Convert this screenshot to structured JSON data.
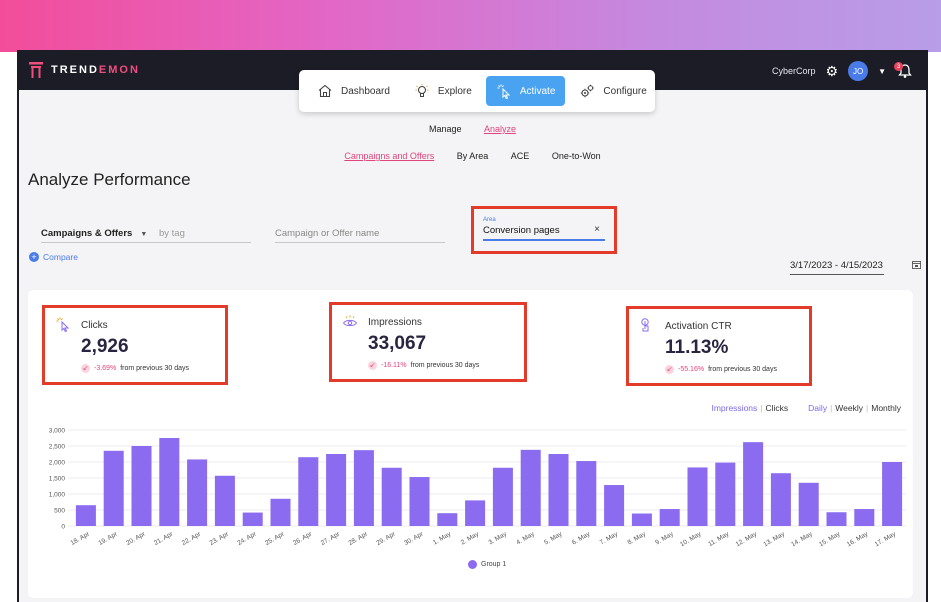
{
  "app": {
    "brand_prefix": "TREND",
    "brand_accent": "EMON",
    "org": "CyberCorp",
    "avatar_initials": "JO",
    "notification_count": "3"
  },
  "main_nav": [
    {
      "label": "Dashboard",
      "icon": "home-icon",
      "active": false
    },
    {
      "label": "Explore",
      "icon": "lightbulb-icon",
      "active": false
    },
    {
      "label": "Activate",
      "icon": "cursor-click-icon",
      "active": true
    },
    {
      "label": "Configure",
      "icon": "gears-icon",
      "active": false
    }
  ],
  "sub_nav": {
    "manage": "Manage",
    "analyze": "Analyze"
  },
  "analyze_tabs": {
    "campaigns": "Campaigns and Offers",
    "by_area": "By Area",
    "ace": "ACE",
    "one_to_won": "One-to-Won"
  },
  "page_title": "Analyze Performance",
  "filters": {
    "type_select": "Campaigns & Offers",
    "tag_placeholder": "by tag",
    "name_placeholder": "Campaign or Offer name",
    "area_label": "Area",
    "area_value": "Conversion pages",
    "clear": "×"
  },
  "compare_label": "Compare",
  "date_range": "3/17/2023 - 4/15/2023",
  "kpis": {
    "clicks": {
      "title": "Clicks",
      "value": "2,926",
      "delta": "-3.69%",
      "suffix": "from previous 30 days",
      "icon": "cursor-click-icon"
    },
    "impressions": {
      "title": "Impressions",
      "value": "33,067",
      "delta": "-16.11%",
      "suffix": "from previous 30 days",
      "icon": "eye-icon"
    },
    "ctr": {
      "title": "Activation CTR",
      "value": "11.13%",
      "delta": "-55.16%",
      "suffix": "from previous 30 days",
      "icon": "touch-icon"
    }
  },
  "chart_controls": {
    "impressions": "Impressions",
    "clicks": "Clicks",
    "daily": "Daily",
    "weekly": "Weekly",
    "monthly": "Monthly",
    "separator": "|"
  },
  "colors": {
    "accent_pink": "#e0457b",
    "bar_purple": "#8b6cf0",
    "highlight_red": "#e33b2a",
    "activate_blue": "#4aa3f0"
  },
  "chart_data": {
    "type": "bar",
    "categories": [
      "18. Apr",
      "19. Apr",
      "20. Apr",
      "21. Apr",
      "22. Apr",
      "23. Apr",
      "24. Apr",
      "25. Apr",
      "26. Apr",
      "27. Apr",
      "28. Apr",
      "29. Apr",
      "30. Apr",
      "1. May",
      "2. May",
      "3. May",
      "4. May",
      "5. May",
      "6. May",
      "7. May",
      "8. May",
      "9. May",
      "10. May",
      "11. May",
      "12. May",
      "13. May",
      "14. May",
      "15. May",
      "16. May",
      "17. May"
    ],
    "series": [
      {
        "name": "Group 1",
        "values": [
          650,
          2350,
          2500,
          2750,
          2080,
          1570,
          420,
          850,
          2150,
          2250,
          2370,
          1820,
          1530,
          400,
          800,
          1820,
          2380,
          2250,
          2030,
          1280,
          390,
          530,
          1830,
          1980,
          2620,
          1650,
          1350,
          430,
          530,
          2000
        ]
      }
    ],
    "ylim": [
      0,
      3000
    ],
    "yticks": [
      "0",
      "500",
      "1,000",
      "1,500",
      "2,000",
      "2,500",
      "3,000"
    ],
    "ytick_values": [
      0,
      500,
      1000,
      1500,
      2000,
      2500,
      3000
    ],
    "grid": true,
    "legend": "bottom-center"
  }
}
